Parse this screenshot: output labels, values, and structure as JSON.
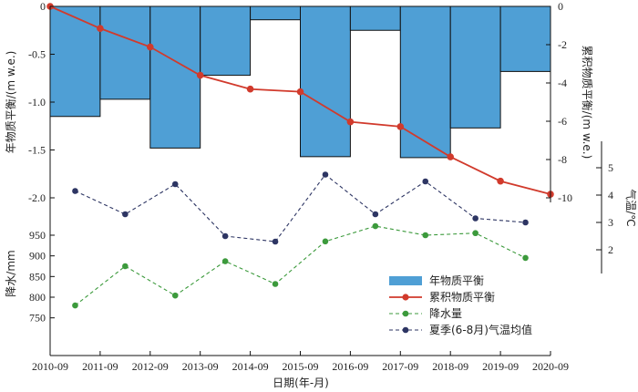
{
  "chart_data": {
    "type": "bar+line",
    "x": [
      "2010-09",
      "2011-09",
      "2012-09",
      "2013-09",
      "2014-09",
      "2015-09",
      "2016-09",
      "2017-09",
      "2018-09",
      "2019-09",
      "2020-09"
    ],
    "xlabel": "日期(年-月)",
    "annual_mass_balance": {
      "name": "年物质平衡",
      "ylabel": "年物质平衡/(m w.e.)",
      "ylim": [
        -2.0,
        0
      ],
      "yticks": [
        0,
        -0.5,
        -1.0,
        -1.5,
        -2.0
      ],
      "ytick_labels": [
        "0",
        "-0.5",
        "-1.0",
        "-1.5",
        "-2.0"
      ],
      "values": [
        -1.15,
        -0.97,
        -1.48,
        -0.72,
        -0.14,
        -1.57,
        -0.25,
        -1.58,
        -1.27,
        -0.68
      ],
      "color": "#4f9fd5"
    },
    "cumulative_mass_balance": {
      "name": "累积物质平衡",
      "ylabel": "累积物质平衡/(m w.e.)",
      "ylim": [
        -10,
        0
      ],
      "yticks": [
        0,
        -2,
        -4,
        -6,
        -8,
        -10
      ],
      "ytick_labels": [
        "0",
        "-2",
        "-4",
        "-6",
        "-8",
        "-10"
      ],
      "x_index": [
        0,
        1,
        2,
        3,
        4,
        5,
        6,
        7,
        8,
        9,
        10
      ],
      "values": [
        0,
        -1.15,
        -2.12,
        -3.6,
        -4.32,
        -4.46,
        -6.03,
        -6.28,
        -7.86,
        -9.13,
        -9.81
      ],
      "color": "#d13a2c"
    },
    "precipitation": {
      "name": "降水量",
      "ylabel": "降水/mm",
      "yticks": [
        750,
        800,
        850,
        900,
        950
      ],
      "ytick_labels": [
        "750",
        "800",
        "850",
        "900",
        "950"
      ],
      "values": [
        780,
        875,
        804,
        887,
        832,
        935,
        972,
        950,
        955,
        895
      ],
      "color": "#3c9a3c"
    },
    "summer_temperature": {
      "name": "夏季(6-8月)气温均值",
      "ylabel": "气温/℃",
      "yticks": [
        2,
        3,
        4,
        5
      ],
      "ytick_labels": [
        "2",
        "3",
        "4",
        "5"
      ],
      "values": [
        4.15,
        3.3,
        4.4,
        2.5,
        2.3,
        4.75,
        3.3,
        4.5,
        3.15,
        3.0
      ],
      "color": "#2d3563"
    },
    "legend": {
      "position": "bottom-right",
      "entries": [
        "年物质平衡",
        "累积物质平衡",
        "降水量",
        "夏季(6-8月)气温均值"
      ]
    },
    "grid": false
  }
}
